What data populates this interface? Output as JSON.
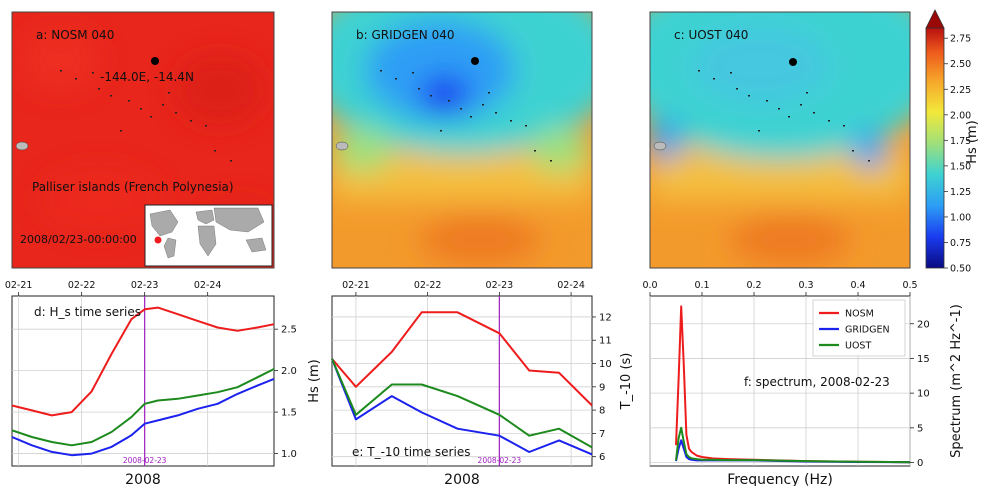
{
  "map_panels": [
    {
      "label": "a: NOSM 040",
      "base_color": "#e8261c"
    },
    {
      "label": "b: GRIDGEN 040",
      "base_color": "#f39a2c"
    },
    {
      "label": "c: UOST 040",
      "base_color": "#f39a2c"
    }
  ],
  "map_annotations": {
    "location": "-144.0E, -14.4N",
    "region": "Palliser islands (French Polynesia)",
    "timestamp": "2008/02/23-00:00:00"
  },
  "colorbar": {
    "label": "Hs (m)",
    "min": 0.5,
    "max": 2.85,
    "ticks": [
      "0.50",
      "0.75",
      "1.00",
      "1.25",
      "1.50",
      "1.75",
      "2.00",
      "2.25",
      "2.50",
      "2.75"
    ],
    "colors": [
      "#0a0a82",
      "#1a3cf0",
      "#2d9ef5",
      "#3ed2d2",
      "#9fe07a",
      "#f2e83a",
      "#f6a62a",
      "#ee5a1c",
      "#b81010"
    ]
  },
  "chart_data": [
    {
      "type": "line",
      "title": "d: H_s time series",
      "xlabel": "2008",
      "ylabel": "Hs (m)",
      "x_ticks": [
        "02-21",
        "02-22",
        "02-23",
        "02-24"
      ],
      "y_ticks": [
        "1.0",
        "1.5",
        "2.0",
        "2.5"
      ],
      "ylim": [
        0.85,
        2.9
      ],
      "xlim": [
        0,
        3.95
      ],
      "marker_x": 2.0,
      "marker_label": "2008-02-23",
      "series": [
        {
          "name": "NOSM",
          "color": "#ee1c1c",
          "x": [
            0,
            0.3,
            0.6,
            0.9,
            1.2,
            1.5,
            1.8,
            2.0,
            2.2,
            2.5,
            2.8,
            3.1,
            3.4,
            3.7,
            3.95
          ],
          "y": [
            1.58,
            1.52,
            1.46,
            1.5,
            1.75,
            2.2,
            2.62,
            2.74,
            2.76,
            2.68,
            2.6,
            2.52,
            2.48,
            2.52,
            2.56
          ]
        },
        {
          "name": "GRIDGEN",
          "color": "#1c22ee",
          "x": [
            0,
            0.3,
            0.6,
            0.9,
            1.2,
            1.5,
            1.8,
            2.0,
            2.2,
            2.5,
            2.8,
            3.1,
            3.4,
            3.7,
            3.95
          ],
          "y": [
            1.2,
            1.1,
            1.02,
            0.98,
            1.0,
            1.08,
            1.22,
            1.36,
            1.4,
            1.46,
            1.54,
            1.6,
            1.72,
            1.82,
            1.9
          ]
        },
        {
          "name": "UOST",
          "color": "#1c8a1c",
          "x": [
            0,
            0.3,
            0.6,
            0.9,
            1.2,
            1.5,
            1.8,
            2.0,
            2.2,
            2.5,
            2.8,
            3.1,
            3.4,
            3.7,
            3.95
          ],
          "y": [
            1.28,
            1.2,
            1.14,
            1.1,
            1.14,
            1.26,
            1.44,
            1.6,
            1.64,
            1.66,
            1.7,
            1.74,
            1.8,
            1.92,
            2.02
          ]
        }
      ]
    },
    {
      "type": "line",
      "title": "e: T_-10 time series",
      "xlabel": "2008",
      "ylabel": "T_-10 (s)",
      "x_ticks": [
        "02-21",
        "02-22",
        "02-23",
        "02-24"
      ],
      "y_ticks": [
        "6",
        "7",
        "8",
        "9",
        "10",
        "11",
        "12"
      ],
      "ylim": [
        5.6,
        12.9
      ],
      "xlim": [
        0,
        4.35
      ],
      "marker_x": 2.8,
      "marker_label": "2008-02-23",
      "series": [
        {
          "name": "NOSM",
          "color": "#ee1c1c",
          "x": [
            0,
            0.4,
            1.0,
            1.5,
            2.1,
            2.8,
            3.3,
            3.8,
            4.35
          ],
          "y": [
            10.2,
            9.0,
            10.5,
            12.2,
            12.2,
            11.3,
            9.7,
            9.6,
            8.2
          ]
        },
        {
          "name": "GRIDGEN",
          "color": "#1c22ee",
          "x": [
            0,
            0.4,
            1.0,
            1.5,
            2.1,
            2.8,
            3.3,
            3.8,
            4.35
          ],
          "y": [
            10.2,
            7.6,
            8.6,
            7.9,
            7.2,
            6.9,
            6.2,
            6.7,
            6.1
          ]
        },
        {
          "name": "UOST",
          "color": "#1c8a1c",
          "x": [
            0,
            0.4,
            1.0,
            1.5,
            2.1,
            2.8,
            3.3,
            3.8,
            4.35
          ],
          "y": [
            10.2,
            7.8,
            9.1,
            9.1,
            8.6,
            7.8,
            6.9,
            7.2,
            6.4
          ]
        }
      ]
    },
    {
      "type": "line",
      "title": "f: spectrum, 2008-02-23",
      "xlabel": "Frequency (Hz)",
      "ylabel": "Spectrum (m^2 Hz^-1)",
      "x_ticks": [
        "0.0",
        "0.1",
        "0.2",
        "0.3",
        "0.4",
        "0.5"
      ],
      "y_ticks": [
        "0",
        "5",
        "10",
        "15",
        "20"
      ],
      "xlim": [
        0,
        0.5
      ],
      "ylim": [
        -0.5,
        24
      ],
      "legend": "top-right",
      "series": [
        {
          "name": "NOSM",
          "color": "#ee1c1c",
          "x": [
            0.05,
            0.055,
            0.06,
            0.065,
            0.07,
            0.075,
            0.08,
            0.09,
            0.1,
            0.12,
            0.15,
            0.2,
            0.3,
            0.4,
            0.5
          ],
          "y": [
            2.5,
            12.0,
            22.5,
            14.0,
            4.0,
            2.0,
            1.5,
            1.0,
            0.8,
            0.6,
            0.5,
            0.4,
            0.2,
            0.1,
            0.05
          ]
        },
        {
          "name": "GRIDGEN",
          "color": "#1c22ee",
          "x": [
            0.05,
            0.055,
            0.06,
            0.065,
            0.07,
            0.075,
            0.08,
            0.09,
            0.1,
            0.12,
            0.15,
            0.2,
            0.3,
            0.4,
            0.5
          ],
          "y": [
            0.2,
            2.0,
            3.2,
            2.0,
            0.8,
            0.5,
            0.4,
            0.3,
            0.3,
            0.3,
            0.3,
            0.3,
            0.15,
            0.08,
            0.04
          ]
        },
        {
          "name": "UOST",
          "color": "#1c8a1c",
          "x": [
            0.05,
            0.055,
            0.06,
            0.065,
            0.07,
            0.075,
            0.08,
            0.09,
            0.1,
            0.12,
            0.15,
            0.2,
            0.3,
            0.4,
            0.5
          ],
          "y": [
            0.3,
            3.5,
            5.0,
            3.0,
            1.2,
            0.8,
            0.6,
            0.5,
            0.4,
            0.4,
            0.35,
            0.35,
            0.2,
            0.1,
            0.05
          ]
        }
      ]
    }
  ]
}
